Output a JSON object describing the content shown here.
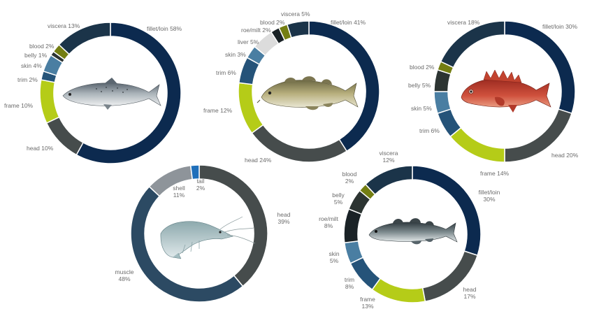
{
  "colors": {
    "navy": "#0c2a4f",
    "dark_slate": "#1b3449",
    "charcoal": "#464c4c",
    "lime": "#b5cc18",
    "olive": "#747e12",
    "dark_blue": "#255379",
    "steel_blue": "#4a7ea2",
    "light_gray": "#dcdcdc",
    "near_black": "#1a2226",
    "dark_gray": "#2c3432",
    "slate_gray": "#8e949a",
    "tail_blue": "#1f6fba",
    "muscle": "#2c4a63"
  },
  "chart_data": [
    {
      "type": "pie",
      "style": "donut",
      "icon": "salmon-icon",
      "start": "fillet/loin at 12 o'clock, clockwise",
      "slices": [
        {
          "label": "fillet/loin 58%",
          "value": 58,
          "color": "navy"
        },
        {
          "label": "head 10%",
          "value": 10,
          "color": "charcoal"
        },
        {
          "label": "frame 10%",
          "value": 10,
          "color": "lime"
        },
        {
          "label": "trim 2%",
          "value": 2,
          "color": "dark_blue"
        },
        {
          "label": "skin 4%",
          "value": 4,
          "color": "steel_blue"
        },
        {
          "label": "belly 1%",
          "value": 1,
          "color": "dark_gray"
        },
        {
          "label": "blood 2%",
          "value": 2,
          "color": "olive"
        },
        {
          "label": "viscera 13%",
          "value": 13,
          "color": "dark_slate"
        }
      ]
    },
    {
      "type": "pie",
      "style": "donut",
      "icon": "cod-icon",
      "start": "fillet/loin at 12 o'clock, clockwise",
      "slices": [
        {
          "label": "fillet/loin 41%",
          "value": 41,
          "color": "navy"
        },
        {
          "label": "head 24%",
          "value": 24,
          "color": "charcoal"
        },
        {
          "label": "frame  12%",
          "value": 12,
          "color": "lime"
        },
        {
          "label": "trim 6%",
          "value": 6,
          "color": "dark_blue"
        },
        {
          "label": "skin 3%",
          "value": 3,
          "color": "steel_blue"
        },
        {
          "label": "liver 5%",
          "value": 5,
          "color": "light_gray"
        },
        {
          "label": "roe/milt 2%",
          "value": 2,
          "color": "near_black"
        },
        {
          "label": "blood 2%",
          "value": 2,
          "color": "olive"
        },
        {
          "label": "viscera 5%",
          "value": 5,
          "color": "dark_slate"
        }
      ]
    },
    {
      "type": "pie",
      "style": "donut",
      "icon": "redfish-icon",
      "start": "fillet/loin at 12 o'clock, clockwise",
      "slices": [
        {
          "label": "fillet/loin 30%",
          "value": 30,
          "color": "navy"
        },
        {
          "label": "head 20%",
          "value": 20,
          "color": "charcoal"
        },
        {
          "label": "frame  14%",
          "value": 14,
          "color": "lime"
        },
        {
          "label": "trim 6%",
          "value": 6,
          "color": "dark_blue"
        },
        {
          "label": "skin 5%",
          "value": 5,
          "color": "steel_blue"
        },
        {
          "label": "belly 5%",
          "value": 5,
          "color": "dark_gray"
        },
        {
          "label": "blood 2%",
          "value": 2,
          "color": "olive"
        },
        {
          "label": "viscera 18%",
          "value": 18,
          "color": "dark_slate"
        }
      ]
    },
    {
      "type": "pie",
      "style": "donut",
      "icon": "shrimp-icon",
      "start": "head at 12 o'clock, clockwise",
      "slices": [
        {
          "label": "head\n39%",
          "value": 39,
          "color": "charcoal"
        },
        {
          "label": "muscle\n48%",
          "value": 48,
          "color": "muscle"
        },
        {
          "label": "shell\n11%",
          "value": 11,
          "color": "slate_gray"
        },
        {
          "label": "tail\n2%",
          "value": 2,
          "color": "tail_blue"
        }
      ]
    },
    {
      "type": "pie",
      "style": "donut",
      "icon": "pollock-icon",
      "start": "fillet/loin at 12 o'clock, clockwise",
      "slices": [
        {
          "label": "fillet/loin\n30%",
          "value": 30,
          "color": "navy"
        },
        {
          "label": "head\n17%",
          "value": 17,
          "color": "charcoal"
        },
        {
          "label": "frame\n13%",
          "value": 13,
          "color": "lime"
        },
        {
          "label": "trim\n8%",
          "value": 8,
          "color": "dark_blue"
        },
        {
          "label": "skin\n5%",
          "value": 5,
          "color": "steel_blue"
        },
        {
          "label": "roe/milt\n8%",
          "value": 8,
          "color": "near_black"
        },
        {
          "label": "belly\n5%",
          "value": 5,
          "color": "dark_gray"
        },
        {
          "label": "blood\n2%",
          "value": 2,
          "color": "olive"
        },
        {
          "label": "viscera\n12%",
          "value": 12,
          "color": "dark_slate"
        }
      ]
    }
  ]
}
